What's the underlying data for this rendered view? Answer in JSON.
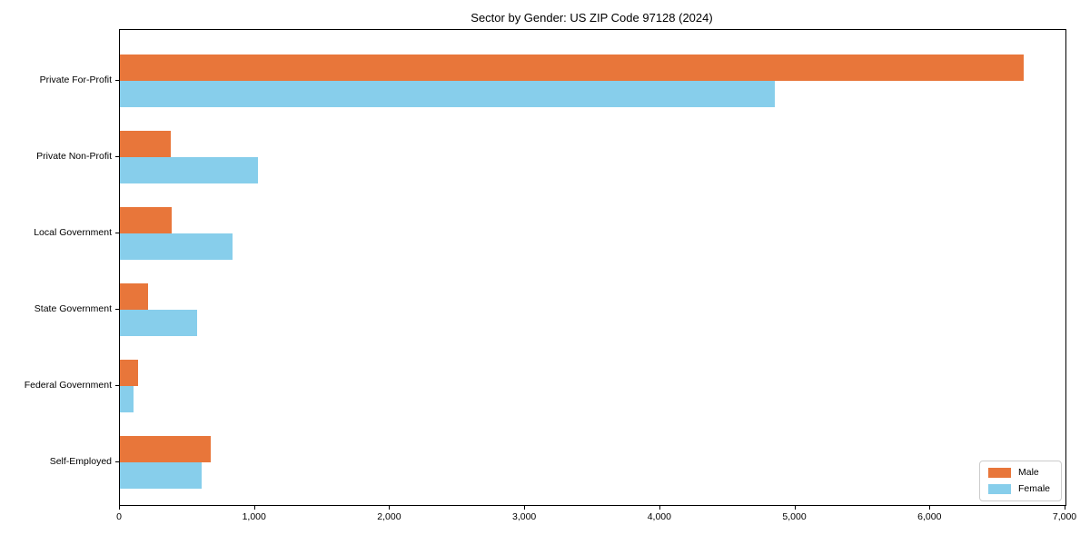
{
  "chart_data": {
    "type": "bar",
    "orientation": "horizontal",
    "title": "Sector by Gender: US ZIP Code 97128 (2024)",
    "categories": [
      "Private For-Profit",
      "Private Non-Profit",
      "Local Government",
      "State Government",
      "Federal Government",
      "Self-Employed"
    ],
    "series": [
      {
        "name": "Male",
        "color": "#e8763a",
        "values": [
          6690,
          375,
          380,
          210,
          135,
          675
        ]
      },
      {
        "name": "Female",
        "color": "#87ceeb",
        "values": [
          4850,
          1020,
          835,
          570,
          100,
          605
        ]
      }
    ],
    "xlabel": "",
    "ylabel": "",
    "xlim": [
      0,
      7000
    ],
    "xticks": [
      0,
      1000,
      2000,
      3000,
      4000,
      5000,
      6000,
      7000
    ],
    "xtick_labels": [
      "0",
      "1,000",
      "2,000",
      "3,000",
      "4,000",
      "5,000",
      "6,000",
      "7,000"
    ],
    "grid": false,
    "legend_position": "lower right"
  }
}
